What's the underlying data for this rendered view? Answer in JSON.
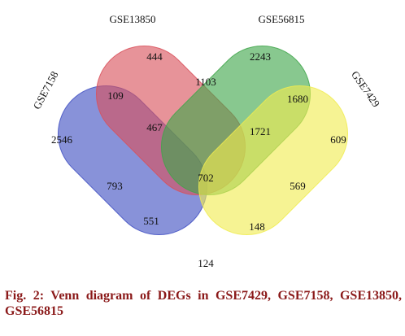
{
  "sets": [
    {
      "id": "gse7158",
      "name": "GSE7158",
      "color": "#3f4fc2"
    },
    {
      "id": "gse13850",
      "name": "GSE13850",
      "color": "#d9505a"
    },
    {
      "id": "gse56815",
      "name": "GSE56815",
      "color": "#3fa64a"
    },
    {
      "id": "gse7429",
      "name": "GSE7429",
      "color": "#f0ec50"
    }
  ],
  "regions": [
    {
      "id": "only-gse13850",
      "sets": [
        "GSE13850"
      ],
      "value": "444"
    },
    {
      "id": "only-gse56815",
      "sets": [
        "GSE56815"
      ],
      "value": "2243"
    },
    {
      "id": "gse13850-gse56815",
      "sets": [
        "GSE13850",
        "GSE56815"
      ],
      "value": "1103"
    },
    {
      "id": "gse7158-gse13850",
      "sets": [
        "GSE7158",
        "GSE13850"
      ],
      "value": "109"
    },
    {
      "id": "gse56815-gse7429",
      "sets": [
        "GSE56815",
        "GSE7429"
      ],
      "value": "1680"
    },
    {
      "id": "only-gse7158",
      "sets": [
        "GSE7158"
      ],
      "value": "2546"
    },
    {
      "id": "gse7158-gse13850-gse56815",
      "sets": [
        "GSE7158",
        "GSE13850",
        "GSE56815"
      ],
      "value": "467"
    },
    {
      "id": "gse13850-gse56815-gse7429",
      "sets": [
        "GSE13850",
        "GSE56815",
        "GSE7429"
      ],
      "value": "1721"
    },
    {
      "id": "only-gse7429",
      "sets": [
        "GSE7429"
      ],
      "value": "609"
    },
    {
      "id": "all-four",
      "sets": [
        "GSE7158",
        "GSE13850",
        "GSE56815",
        "GSE7429"
      ],
      "value": "702"
    },
    {
      "id": "gse7158-gse56815",
      "sets": [
        "GSE7158",
        "GSE56815"
      ],
      "value": "793"
    },
    {
      "id": "gse13850-gse7429",
      "sets": [
        "GSE13850",
        "GSE7429"
      ],
      "value": "569"
    },
    {
      "id": "gse7158-gse56815-gse7429",
      "sets": [
        "GSE7158",
        "GSE56815",
        "GSE7429"
      ],
      "value": "551"
    },
    {
      "id": "gse7158-gse13850-gse7429",
      "sets": [
        "GSE7158",
        "GSE13850",
        "GSE7429"
      ],
      "value": "148"
    },
    {
      "id": "gse7158-gse7429",
      "sets": [
        "GSE7158",
        "GSE7429"
      ],
      "value": "124"
    }
  ],
  "caption": "Fig. 2: Venn diagram of DEGs in GSE7429, GSE7158, GSE13850, GSE56815"
}
